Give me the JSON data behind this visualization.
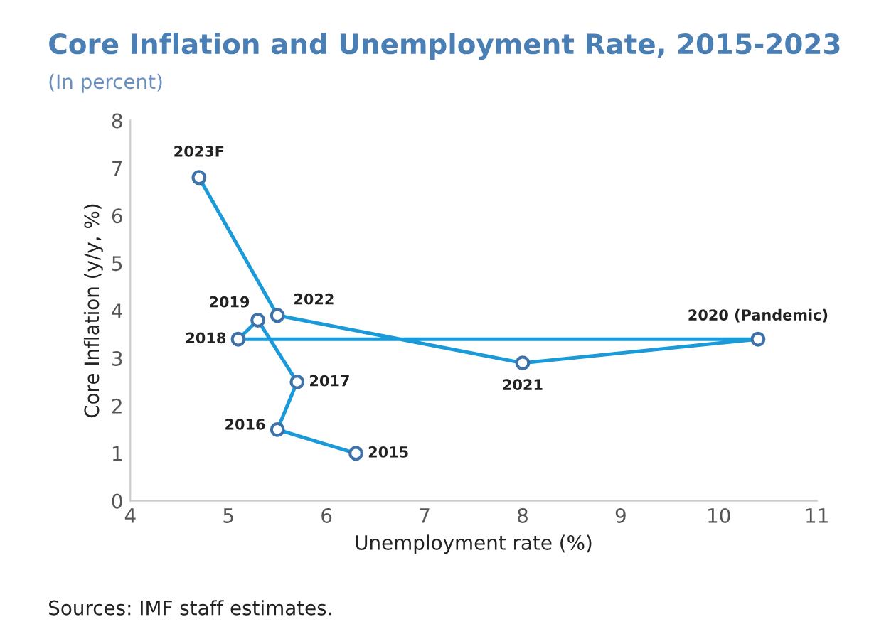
{
  "chart_data": {
    "type": "line",
    "title": "Core Inflation and Unemployment Rate, 2015-2023",
    "subtitle": "(In percent)",
    "xlabel": "Unemployment rate (%)",
    "ylabel": "Core Inflation (y/y, %)",
    "x": [
      6.3,
      5.5,
      5.7,
      5.3,
      5.1,
      10.4,
      8.0,
      5.5,
      4.7
    ],
    "series": [
      {
        "color": "#1a9ad9",
        "values": [
          1.0,
          1.5,
          2.5,
          3.8,
          3.4,
          3.4,
          2.9,
          3.9,
          6.8
        ]
      }
    ],
    "marker": "circle",
    "line_style": "solid",
    "xlim": [
      4,
      11
    ],
    "xticks": [
      4,
      5,
      6,
      7,
      8,
      9,
      10,
      11
    ],
    "ylim": [
      0,
      8
    ],
    "yticks": [
      0,
      1,
      2,
      3,
      4,
      5,
      6,
      7,
      8
    ],
    "grid": false,
    "annotations": [
      {
        "text": "2015",
        "x": 6.3,
        "y": 1.0
      },
      {
        "text": "2016",
        "x": 5.5,
        "y": 1.5
      },
      {
        "text": "2017",
        "x": 5.7,
        "y": 2.5
      },
      {
        "text": "2019",
        "x": 5.3,
        "y": 3.8
      },
      {
        "text": "2018",
        "x": 5.1,
        "y": 3.4
      },
      {
        "text": "2020 (Pandemic)",
        "x": 10.4,
        "y": 3.4
      },
      {
        "text": "2021",
        "x": 8.0,
        "y": 2.9
      },
      {
        "text": "2022",
        "x": 5.5,
        "y": 3.9
      },
      {
        "text": "2023F",
        "x": 4.7,
        "y": 6.8
      },
      "Sources: IMF staff estimates."
    ]
  }
}
